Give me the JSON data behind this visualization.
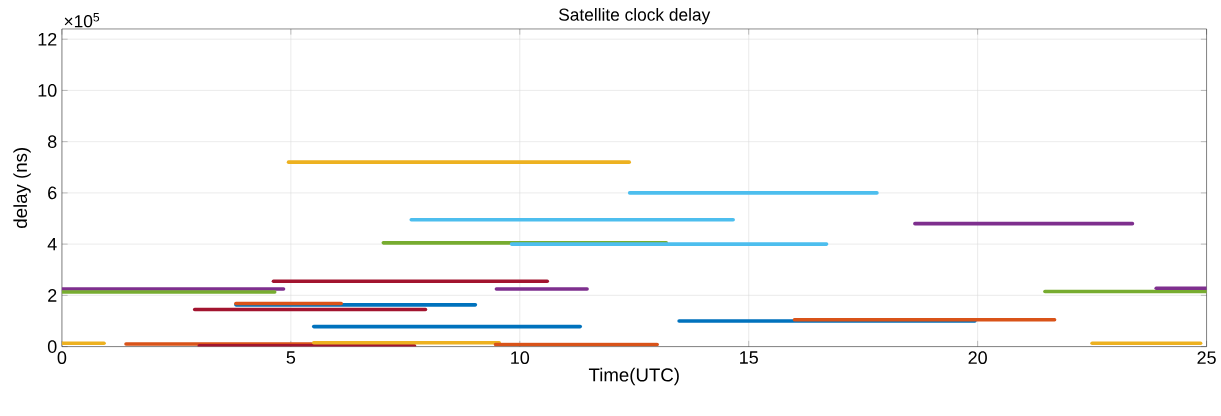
{
  "chart_data": {
    "type": "line",
    "title": "Satellite clock delay",
    "xlabel": "Time(UTC)",
    "ylabel": "delay (ns)",
    "annotations": [
      "×10$^{5}$"
    ],
    "xlim": [
      0,
      25
    ],
    "xticks": [
      0,
      5,
      10,
      15,
      20,
      25
    ],
    "ylim": [
      0,
      12.4
    ],
    "yticks": [
      0,
      2,
      4,
      6,
      8,
      10,
      12
    ],
    "grid": true,
    "marker": "none",
    "line_style": "solid",
    "series": [
      {
        "color": "#edb120",
        "x": [
          4.95,
          12.39
        ],
        "values": [
          7.2,
          7.2
        ]
      },
      {
        "color": "#4dbeee",
        "x": [
          12.4,
          17.8
        ],
        "values": [
          6.0,
          6.0
        ]
      },
      {
        "color": "#4dbeee",
        "x": [
          7.63,
          14.66
        ],
        "values": [
          4.95,
          4.95
        ]
      },
      {
        "color": "#77ac30",
        "x": [
          7.02,
          13.2
        ],
        "values": [
          4.05,
          4.05
        ]
      },
      {
        "color": "#4dbeee",
        "x": [
          9.82,
          16.7
        ],
        "values": [
          4.0,
          4.0
        ]
      },
      {
        "color": "#7e2f8e",
        "x": [
          18.63,
          23.38
        ],
        "values": [
          4.8,
          4.8
        ]
      },
      {
        "color": "#a2142f",
        "x": [
          4.62,
          10.6
        ],
        "values": [
          2.55,
          2.55
        ]
      },
      {
        "color": "#7e2f8e",
        "x": [
          0,
          4.84
        ],
        "values": [
          2.25,
          2.25
        ]
      },
      {
        "color": "#77ac30",
        "x": [
          0,
          4.65
        ],
        "values": [
          2.13,
          2.13
        ]
      },
      {
        "color": "#7e2f8e",
        "x": [
          9.49,
          11.47
        ],
        "values": [
          2.25,
          2.25
        ]
      },
      {
        "color": "#0072bd",
        "x": [
          3.8,
          9.03
        ],
        "values": [
          1.63,
          1.63
        ]
      },
      {
        "color": "#d95319",
        "x": [
          3.8,
          6.1
        ],
        "values": [
          1.68,
          1.68
        ]
      },
      {
        "color": "#a2142f",
        "x": [
          2.9,
          7.94
        ],
        "values": [
          1.45,
          1.45
        ]
      },
      {
        "color": "#0072bd",
        "x": [
          5.5,
          11.32
        ],
        "values": [
          0.78,
          0.78
        ]
      },
      {
        "color": "#0072bd",
        "x": [
          13.48,
          19.94
        ],
        "values": [
          1.0,
          1.0
        ]
      },
      {
        "color": "#d95319",
        "x": [
          16.0,
          21.68
        ],
        "values": [
          1.05,
          1.05
        ]
      },
      {
        "color": "#77ac30",
        "x": [
          21.47,
          25
        ],
        "values": [
          2.15,
          2.15
        ]
      },
      {
        "color": "#7e2f8e",
        "x": [
          23.9,
          25
        ],
        "values": [
          2.28,
          2.28
        ]
      },
      {
        "color": "#edb120",
        "x": [
          22.5,
          24.87
        ],
        "values": [
          0.13,
          0.13
        ]
      },
      {
        "color": "#edb120",
        "x": [
          0,
          0.92
        ],
        "values": [
          0.13,
          0.13
        ]
      },
      {
        "color": "#d95319",
        "x": [
          1.4,
          5.45
        ],
        "values": [
          0.1,
          0.1
        ]
      },
      {
        "color": "#a2142f",
        "x": [
          3.0,
          7.7
        ],
        "values": [
          0.03,
          0.03
        ]
      },
      {
        "color": "#edb120",
        "x": [
          5.5,
          9.55
        ],
        "values": [
          0.15,
          0.15
        ]
      },
      {
        "color": "#d95319",
        "x": [
          9.47,
          13.0
        ],
        "values": [
          0.08,
          0.08
        ]
      }
    ]
  }
}
